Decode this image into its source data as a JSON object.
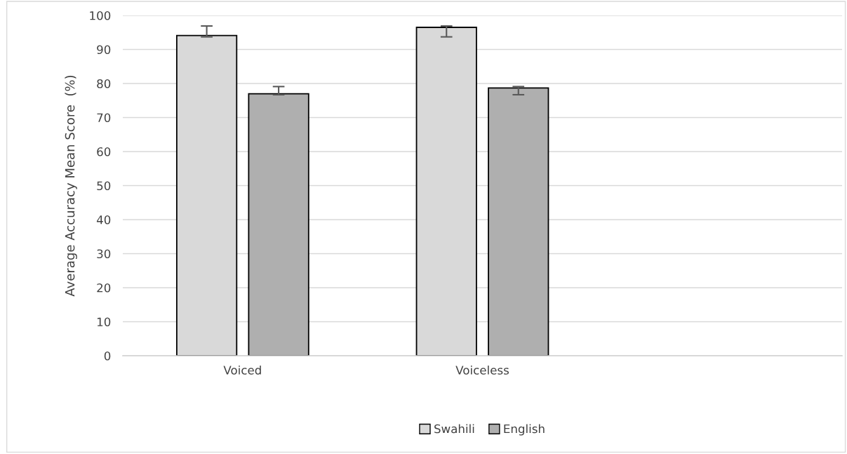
{
  "chart_data": {
    "type": "bar",
    "ylabel": "Average Accuracy Mean Score  (%)",
    "categories": [
      "Voiced",
      "Voiceless",
      null
    ],
    "series": [
      {
        "name": "Swahili",
        "color": "#d9d9d9",
        "values": [
          94.1,
          96.5,
          null
        ],
        "errors": [
          [
            93.7,
            96.9
          ],
          [
            93.7,
            96.9
          ],
          null
        ]
      },
      {
        "name": "English",
        "color": "#afafaf",
        "values": [
          77.0,
          78.7,
          null
        ],
        "errors": [
          [
            76.7,
            79.1
          ],
          [
            76.7,
            79.1
          ],
          null
        ]
      }
    ],
    "ylim": [
      0,
      100
    ],
    "yticks": [
      0,
      10,
      20,
      30,
      40,
      50,
      60,
      70,
      80,
      90,
      100
    ],
    "grid": "y",
    "legend": "bottom"
  }
}
